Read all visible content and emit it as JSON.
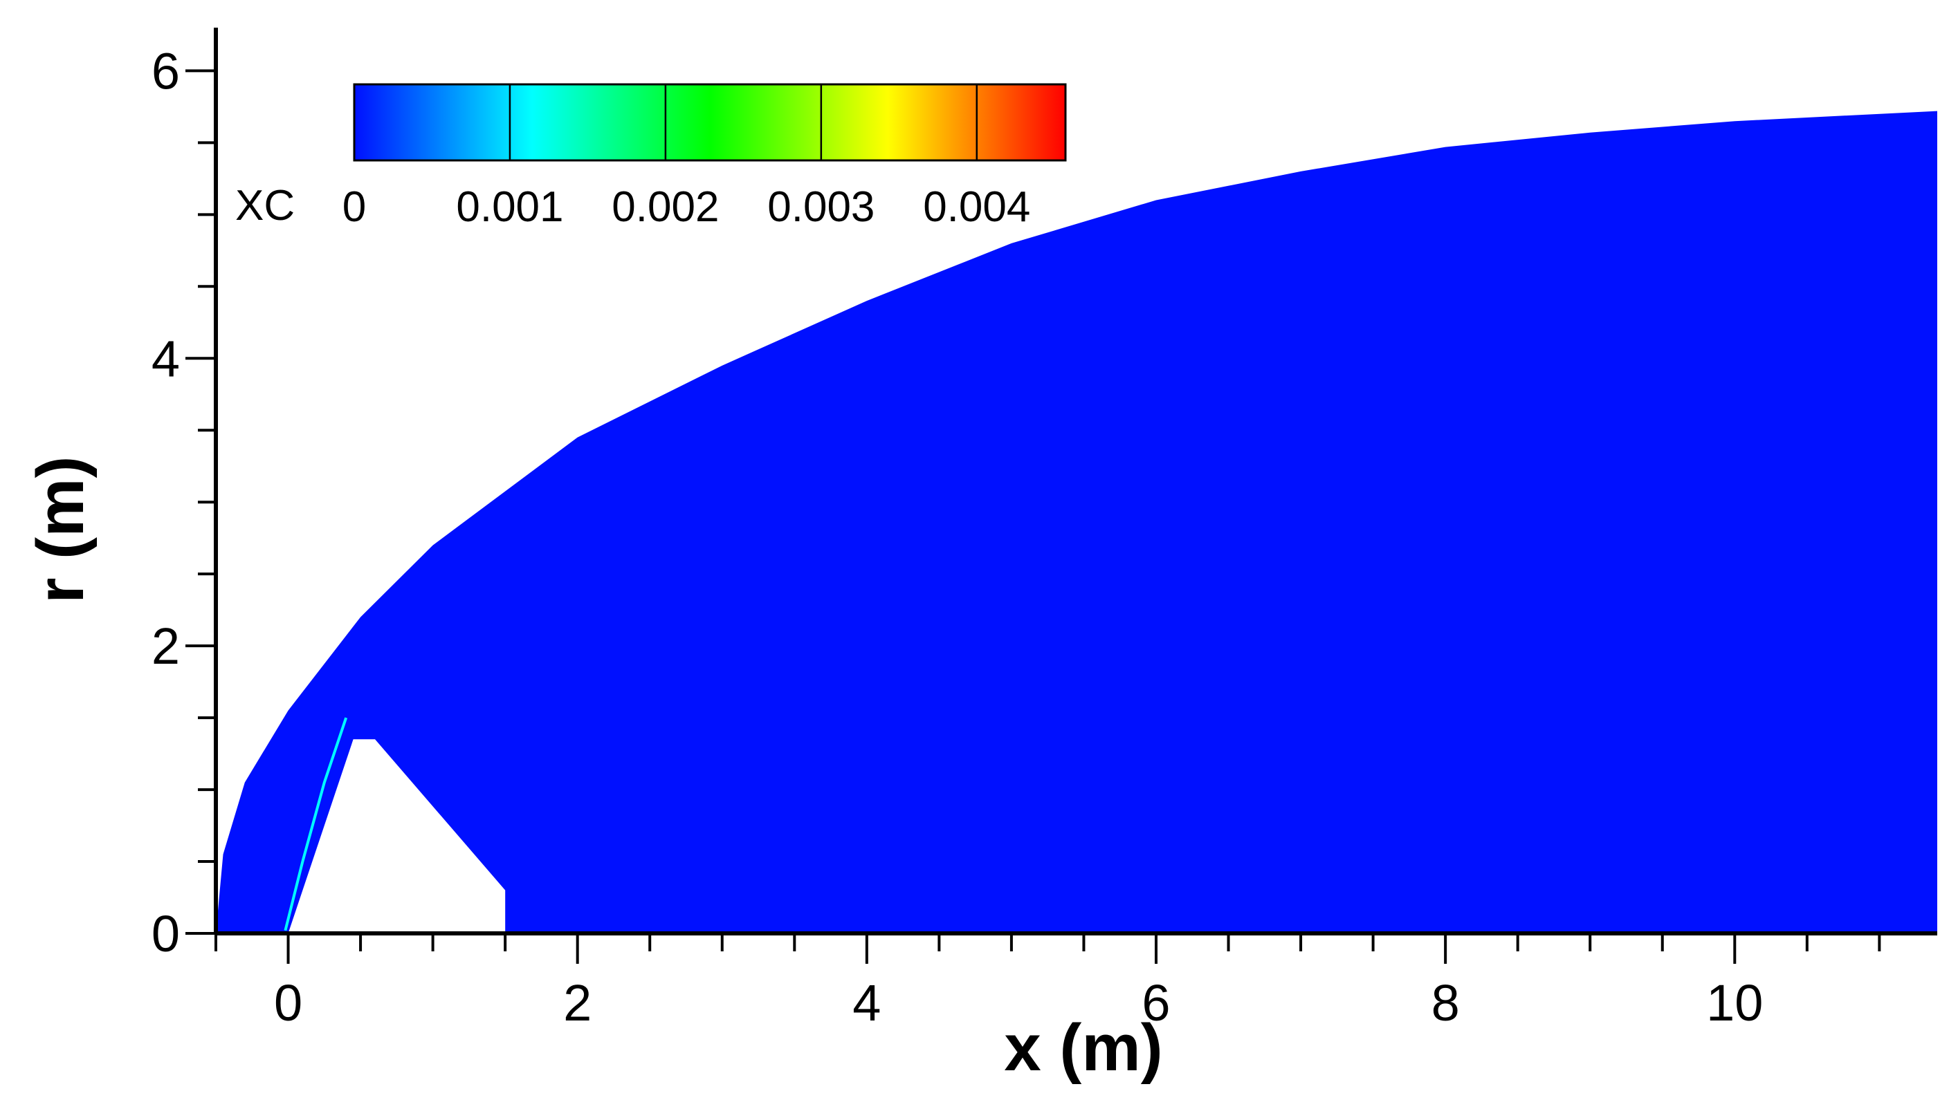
{
  "chart_data": {
    "type": "heatmap",
    "title": "",
    "xlabel": "x (m)",
    "ylabel": "r (m)",
    "xlim": [
      -0.5,
      11.4
    ],
    "ylim": [
      0,
      6.3
    ],
    "x_ticks": [
      0,
      2,
      4,
      6,
      8,
      10
    ],
    "x_minor_step": 0.5,
    "y_ticks": [
      0,
      2,
      4,
      6
    ],
    "y_minor_step": 0.5,
    "grid": false,
    "colorbar": {
      "variable": "XC",
      "min": 0,
      "max": 0.00457,
      "tick_values": [
        0,
        0.001,
        0.002,
        0.003,
        0.004
      ],
      "tick_labels": [
        "0",
        "0.001",
        "0.002",
        "0.003",
        "0.004"
      ],
      "colors": [
        "#0010ff",
        "#00ffff",
        "#00ff00",
        "#ffff00",
        "#ff0000"
      ],
      "placement": "top-left",
      "orientation": "horizontal"
    },
    "field": {
      "dominant_value": 0,
      "dominant_color": "#0010ff",
      "outer_shock_boundary": [
        [
          -0.5,
          0
        ],
        [
          -0.45,
          0.55
        ],
        [
          -0.3,
          1.05
        ],
        [
          0,
          1.55
        ],
        [
          0.5,
          2.2
        ],
        [
          1,
          2.7
        ],
        [
          2,
          3.45
        ],
        [
          3,
          3.95
        ],
        [
          4,
          4.4
        ],
        [
          5,
          4.8
        ],
        [
          6,
          5.1
        ],
        [
          7,
          5.3
        ],
        [
          8,
          5.47
        ],
        [
          9,
          5.57
        ],
        [
          10,
          5.65
        ],
        [
          11.4,
          5.72
        ]
      ],
      "body_outline": [
        [
          0,
          0
        ],
        [
          0.45,
          1.35
        ],
        [
          0.6,
          1.35
        ],
        [
          1.5,
          0.3
        ],
        [
          1.5,
          0
        ]
      ],
      "trace_line": [
        [
          -0.02,
          0.02
        ],
        [
          0.1,
          0.5
        ],
        [
          0.25,
          1.05
        ],
        [
          0.4,
          1.5
        ]
      ],
      "trace_color": "#00ffff"
    }
  }
}
